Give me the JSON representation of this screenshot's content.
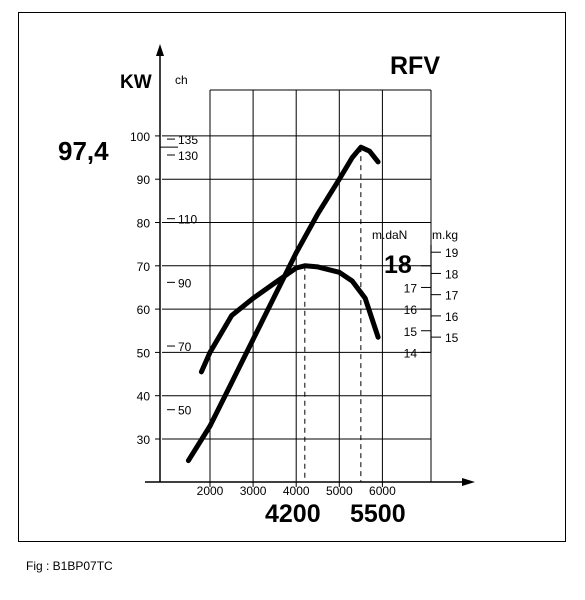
{
  "chart_data": {
    "type": "line",
    "title": "RFV",
    "grid": true,
    "x": {
      "ticks": [
        2000,
        3000,
        4000,
        5000,
        6000
      ],
      "lim": [
        1200,
        6400
      ],
      "highlight_labels": [
        "4200",
        "5500"
      ],
      "highlight_values": [
        4200,
        5500
      ]
    },
    "y_power": {
      "label_kw": "KW",
      "label_ch": "ch",
      "kw_ticks": [
        30,
        40,
        50,
        60,
        70,
        80,
        90,
        100
      ],
      "kw_lim": [
        20,
        108
      ],
      "ch_ticks": [
        50,
        70,
        90,
        110,
        130,
        135
      ],
      "ch_per_kw": 1.36,
      "peak_label": "97,4"
    },
    "y_torque": {
      "label_mdan": "m.daN",
      "label_mkg": "m.kg",
      "mdan_ticks": [
        14,
        15,
        16,
        17,
        18
      ],
      "mdan_at_kw": [
        50,
        55,
        60,
        65,
        70
      ],
      "mkg_ticks": [
        15,
        16,
        17,
        18,
        19
      ],
      "mkg_per_mdan": 1.02,
      "peak_label": "18"
    },
    "series": [
      {
        "id": "power",
        "unit": "KW",
        "x": [
          1500,
          2000,
          2500,
          3000,
          3500,
          4000,
          4500,
          5000,
          5300,
          5500,
          5700,
          5900
        ],
        "y": [
          25,
          33,
          43,
          53,
          63,
          73,
          82,
          90,
          95,
          97.4,
          96.5,
          94
        ]
      },
      {
        "id": "torque",
        "unit": "m.daN",
        "x": [
          1800,
          2000,
          2500,
          3000,
          3500,
          4000,
          4200,
          4500,
          5000,
          5300,
          5600,
          5900
        ],
        "y": [
          13.1,
          14.0,
          15.7,
          16.5,
          17.2,
          17.9,
          18.0,
          17.95,
          17.7,
          17.3,
          16.5,
          14.7
        ]
      }
    ]
  },
  "caption": "Fig : B1BP07TC"
}
